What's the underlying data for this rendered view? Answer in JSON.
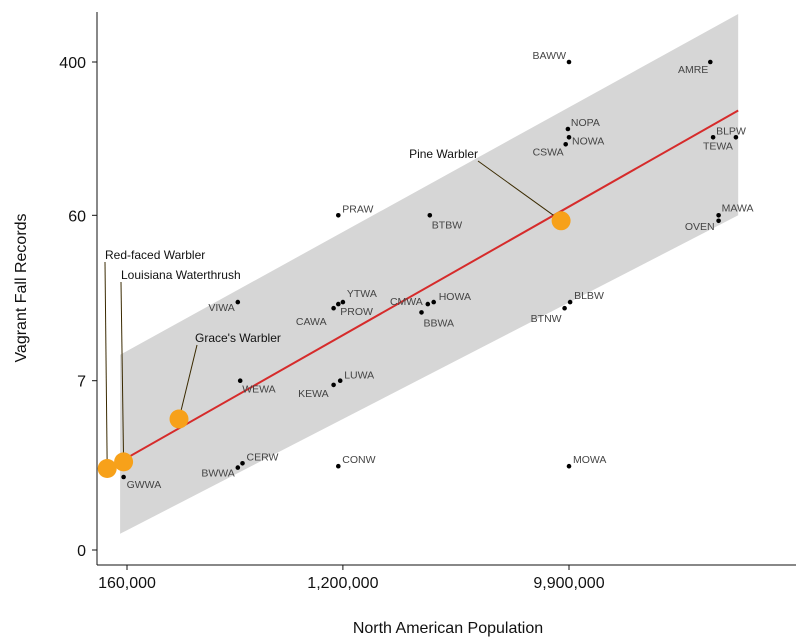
{
  "chart_data": {
    "type": "scatter",
    "xlabel": "North American Population",
    "ylabel": "Vagrant Fall Records",
    "x_scale": "log",
    "y_scale": "log1p",
    "x_ticks": [
      {
        "value": 160000,
        "label": "160,000"
      },
      {
        "value": 1200000,
        "label": "1,200,000"
      },
      {
        "value": 9900000,
        "label": "9,900,000"
      }
    ],
    "y_ticks": [
      {
        "value": 0,
        "label": "0"
      },
      {
        "value": 7,
        "label": "7"
      },
      {
        "value": 60,
        "label": "60"
      },
      {
        "value": 400,
        "label": "400"
      }
    ],
    "xlim": [
      100000,
      48000000
    ],
    "ylim": [
      0,
      800
    ],
    "grid": false,
    "points": [
      {
        "code": "BAWW",
        "x": 9900000,
        "y": 400
      },
      {
        "code": "AMRE",
        "x": 37000000,
        "y": 400
      },
      {
        "code": "NOPA",
        "x": 9800000,
        "y": 175
      },
      {
        "code": "NOWA",
        "x": 9900000,
        "y": 158
      },
      {
        "code": "CSWA",
        "x": 9600000,
        "y": 145
      },
      {
        "code": "BLPW",
        "x": 38000000,
        "y": 158
      },
      {
        "code": "TEWA",
        "x": 47000000,
        "y": 158
      },
      {
        "code": "PRAW",
        "x": 1150000,
        "y": 60
      },
      {
        "code": "BTBW",
        "x": 2700000,
        "y": 60
      },
      {
        "code": "MAWA",
        "x": 40000000,
        "y": 60
      },
      {
        "code": "OVEN",
        "x": 40000000,
        "y": 56
      },
      {
        "code": "VIWA",
        "x": 450000,
        "y": 20
      },
      {
        "code": "YTWA",
        "x": 1200000,
        "y": 20
      },
      {
        "code": "CAWA",
        "x": 1100000,
        "y": 18.5
      },
      {
        "code": "PROW",
        "x": 1150000,
        "y": 19.5
      },
      {
        "code": "CMWA",
        "x": 2650000,
        "y": 19.5
      },
      {
        "code": "HOWA",
        "x": 2800000,
        "y": 20
      },
      {
        "code": "BBWA",
        "x": 2500000,
        "y": 17.5
      },
      {
        "code": "BLBW",
        "x": 10000000,
        "y": 20
      },
      {
        "code": "BTNW",
        "x": 9500000,
        "y": 18.5
      },
      {
        "code": "WEWA",
        "x": 460000,
        "y": 7
      },
      {
        "code": "LUWA",
        "x": 1170000,
        "y": 7
      },
      {
        "code": "KEWA",
        "x": 1100000,
        "y": 6.6
      },
      {
        "code": "CERW",
        "x": 470000,
        "y": 1.9
      },
      {
        "code": "BWWA",
        "x": 450000,
        "y": 1.75
      },
      {
        "code": "CONW",
        "x": 1150000,
        "y": 1.8
      },
      {
        "code": "MOWA",
        "x": 9900000,
        "y": 1.8
      },
      {
        "code": "GWWA",
        "x": 155000,
        "y": 1.45
      }
    ],
    "highlighted": [
      {
        "name": "Red-faced Warbler",
        "x": 133000,
        "y": 1.72
      },
      {
        "name": "Louisiana Waterthrush",
        "x": 155000,
        "y": 1.95
      },
      {
        "name": "Grace's Warbler",
        "x": 260000,
        "y": 4.0
      },
      {
        "name": "Pine Warbler",
        "x": 9200000,
        "y": 56
      }
    ],
    "trend_line": {
      "x": [
        133000,
        48000000
      ],
      "y": [
        1.7,
        220
      ]
    },
    "confidence_band": {
      "x": [
        150000,
        48000000
      ],
      "upper": [
        10,
        800
      ],
      "lower": [
        0.22,
        60
      ]
    },
    "colors": {
      "point": "#000000",
      "highlight": "#F7A11A",
      "trend": "#D62B2B",
      "band": "#D6D6D6",
      "callout_line": "#3a2a00"
    }
  }
}
